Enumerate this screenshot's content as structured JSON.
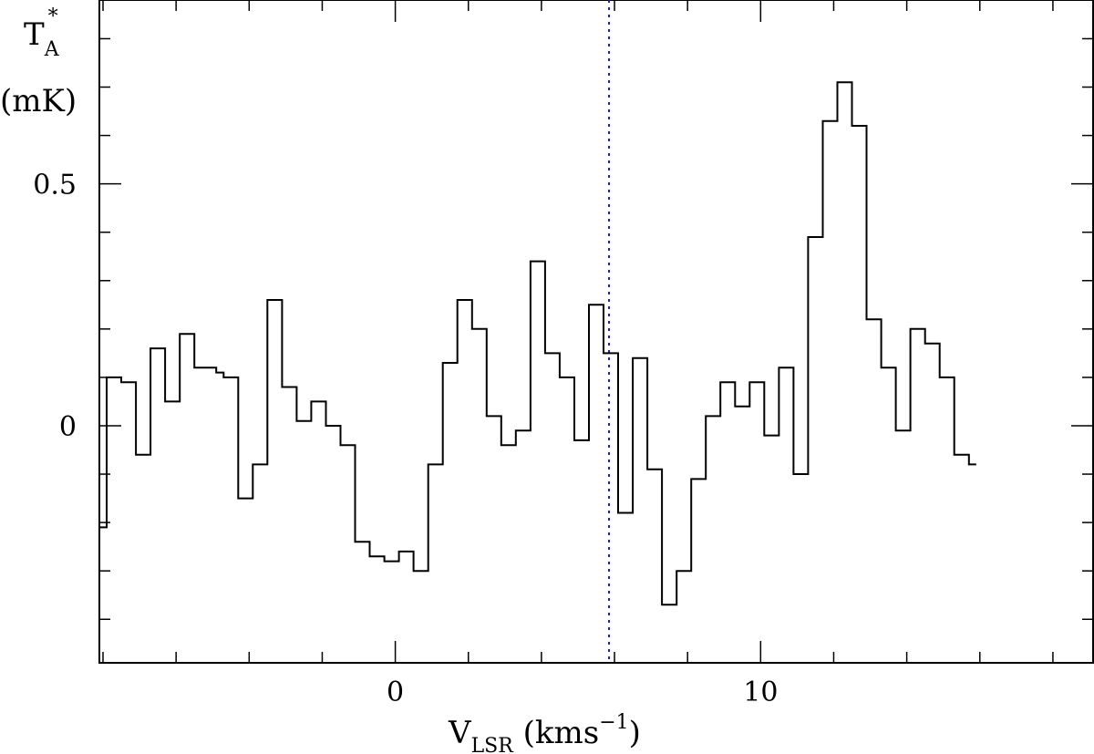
{
  "chart_data": {
    "type": "line",
    "style": "step",
    "xlabel": {
      "main": "V",
      "sub": "LSR",
      "units_main": " (kms",
      "units_sup": "−1",
      "units_close": ")"
    },
    "ylabel": {
      "main": "T",
      "sub": "A",
      "sup": "*",
      "units": "(mK)"
    },
    "xlim": [
      -8.1,
      19.1
    ],
    "ylim": [
      -0.49,
      0.88
    ],
    "x_major_ticks": [
      0,
      10
    ],
    "x_tick_labels": [
      "0",
      "10"
    ],
    "x_minor_ticks": [
      -8,
      -6,
      -4,
      -2,
      0,
      2,
      4,
      6,
      8,
      10,
      12,
      14,
      16,
      18
    ],
    "y_major_ticks": [
      0,
      0.5
    ],
    "y_tick_labels": [
      "0",
      "0.5"
    ],
    "y_minor_ticks": [
      -0.4,
      -0.3,
      -0.2,
      -0.1,
      0,
      0.1,
      0.2,
      0.3,
      0.4,
      0.5,
      0.6,
      0.7,
      0.8
    ],
    "reference_line": {
      "x": 5.85,
      "color": "#1a1acc",
      "style": "dotted"
    },
    "series": [
      {
        "color": "#000000",
        "bin_width": 0.2,
        "x_start": -8.1,
        "values": [
          -0.21,
          0.1,
          0.1,
          0.09,
          0.09,
          -0.06,
          -0.06,
          0.16,
          0.16,
          0.05,
          0.05,
          0.19,
          0.19,
          0.12,
          0.12,
          0.12,
          0.11,
          0.1,
          0.1,
          -0.15,
          -0.15,
          -0.08,
          -0.08,
          0.26,
          0.26,
          0.08,
          0.08,
          0.01,
          0.01,
          0.05,
          0.05,
          0.0,
          0.0,
          -0.04,
          -0.04,
          -0.24,
          -0.24,
          -0.27,
          -0.27,
          -0.28,
          -0.28,
          -0.26,
          -0.26,
          -0.3,
          -0.3,
          -0.08,
          -0.08,
          0.13,
          0.13,
          0.26,
          0.26,
          0.2,
          0.2,
          0.02,
          0.02,
          -0.04,
          -0.04,
          -0.01,
          -0.01,
          0.34,
          0.34,
          0.15,
          0.15,
          0.1,
          0.1,
          -0.03,
          -0.03,
          0.25,
          0.25,
          0.15,
          0.15,
          -0.18,
          -0.18,
          0.14,
          0.14,
          -0.09,
          -0.09,
          -0.37,
          -0.37,
          -0.3,
          -0.3,
          -0.11,
          -0.11,
          0.02,
          0.02,
          0.09,
          0.09,
          0.04,
          0.04,
          0.09,
          0.09,
          -0.02,
          -0.02,
          0.12,
          0.12,
          -0.1,
          -0.1,
          0.39,
          0.39,
          0.63,
          0.63,
          0.71,
          0.71,
          0.62,
          0.62,
          0.22,
          0.22,
          0.12,
          0.12,
          -0.01,
          -0.01,
          0.2,
          0.2,
          0.17,
          0.17,
          0.1,
          0.1,
          -0.06,
          -0.06,
          -0.08
        ]
      }
    ]
  }
}
